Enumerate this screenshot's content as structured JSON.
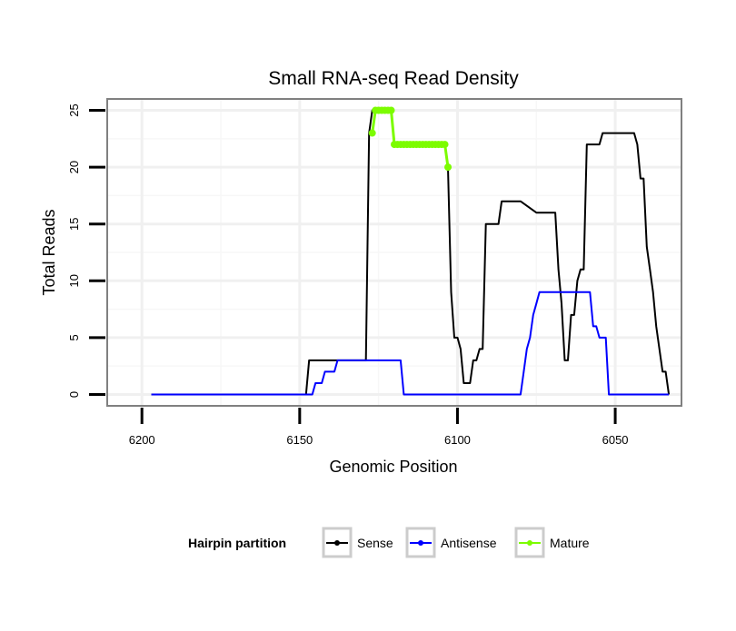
{
  "chart_data": {
    "type": "line",
    "title": "Small RNA-seq Read Density",
    "xlabel": "Genomic Position",
    "ylabel": "Total Reads",
    "xlim": [
      6211,
      6029
    ],
    "ylim": [
      -1,
      26
    ],
    "x_reversed": true,
    "x_ticks": [
      6200,
      6150,
      6100,
      6050
    ],
    "x_tick_labels": [
      "6200",
      "6150",
      "6100",
      "6050"
    ],
    "y_ticks": [
      0,
      5,
      10,
      15,
      20,
      25
    ],
    "y_tick_labels": [
      "0",
      "5",
      "10",
      "15",
      "20",
      "25"
    ],
    "grid": true,
    "legend": {
      "title": "Hairpin partition",
      "position": "bottom",
      "entries": [
        "Sense",
        "Antisense",
        "Mature"
      ]
    },
    "series": [
      {
        "name": "Sense",
        "color": "#000000",
        "x": [
          6197,
          6148,
          6147,
          6129,
          6128,
          6127,
          6126,
          6121,
          6120,
          6113,
          6112,
          6111,
          6110,
          6109,
          6108,
          6105,
          6104,
          6103,
          6102,
          6101,
          6100,
          6099,
          6098,
          6097,
          6096,
          6095,
          6094,
          6093,
          6092,
          6091,
          6090,
          6089,
          6088,
          6087,
          6086,
          6082,
          6081,
          6080,
          6075,
          6074,
          6073,
          6069,
          6068,
          6067,
          6066,
          6065,
          6064,
          6063,
          6062,
          6061,
          6060,
          6059,
          6058,
          6057,
          6056,
          6055,
          6054,
          6053,
          6045,
          6044,
          6043,
          6042,
          6041,
          6040,
          6039,
          6038,
          6037,
          6036,
          6035,
          6034,
          6033
        ],
        "y": [
          0,
          0,
          3,
          3,
          23,
          25,
          25,
          25,
          22,
          22,
          22,
          22,
          22,
          22,
          22,
          22,
          22,
          20,
          9,
          5,
          5,
          4,
          1,
          1,
          1,
          3,
          3,
          4,
          4,
          15,
          15,
          15,
          15,
          15,
          17,
          17,
          17,
          17,
          16,
          16,
          16,
          16,
          11,
          8,
          3,
          3,
          7,
          7,
          10,
          11,
          11,
          22,
          22,
          22,
          22,
          22,
          23,
          23,
          23,
          23,
          22,
          19,
          19,
          13,
          11,
          9,
          6,
          4,
          2,
          2,
          0
        ]
      },
      {
        "name": "Antisense",
        "color": "#0000ff",
        "x": [
          6197,
          6147,
          6146,
          6145,
          6144,
          6143,
          6142,
          6141,
          6139,
          6138,
          6118,
          6117,
          6080,
          6079,
          6078,
          6077,
          6076,
          6075,
          6074,
          6073,
          6058,
          6057,
          6056,
          6055,
          6054,
          6053,
          6052,
          6033
        ],
        "y": [
          0,
          0,
          0,
          1,
          1,
          1,
          2,
          2,
          2,
          3,
          3,
          0,
          0,
          2,
          4,
          5,
          7,
          8,
          9,
          9,
          9,
          6,
          6,
          5,
          5,
          5,
          0,
          0
        ]
      },
      {
        "name": "Mature",
        "color": "#7cfc00",
        "x": [
          6127,
          6126,
          6125,
          6124,
          6123,
          6122,
          6121,
          6120,
          6119,
          6118,
          6117,
          6116,
          6115,
          6114,
          6113,
          6112,
          6111,
          6110,
          6109,
          6108,
          6107,
          6106,
          6105,
          6104,
          6103
        ],
        "y": [
          23,
          25,
          25,
          25,
          25,
          25,
          25,
          22,
          22,
          22,
          22,
          22,
          22,
          22,
          22,
          22,
          22,
          22,
          22,
          22,
          22,
          22,
          22,
          22,
          20
        ]
      }
    ]
  }
}
